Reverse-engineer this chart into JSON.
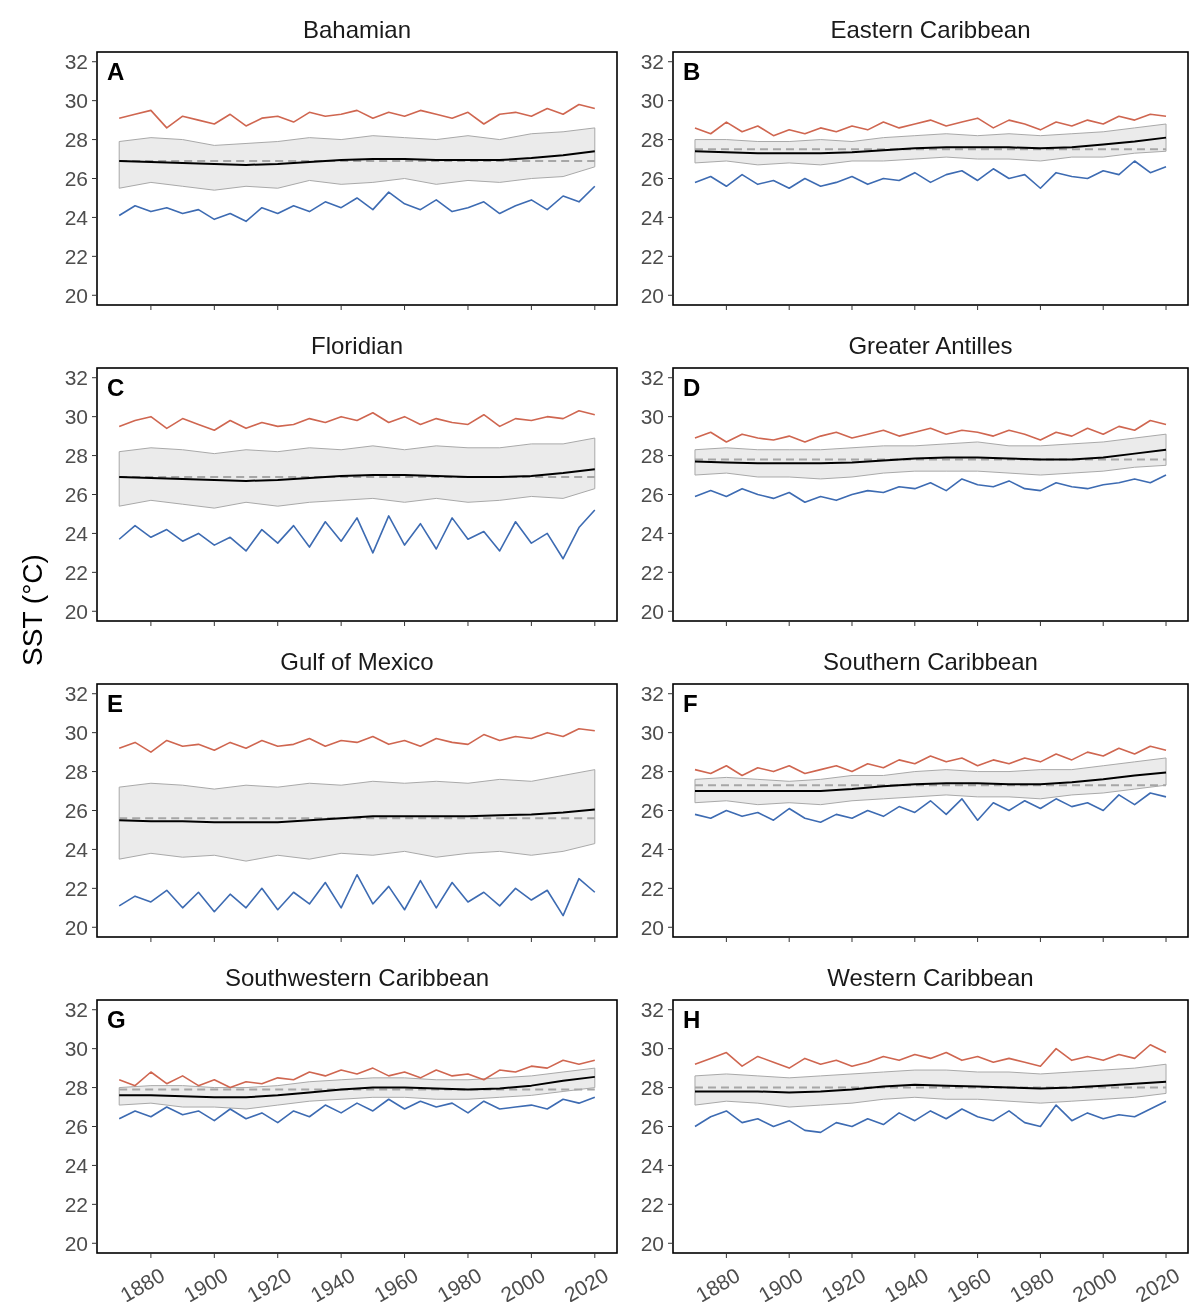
{
  "chart_data": [
    {
      "type": "line",
      "title": "Bahamian",
      "annotations": [
        "A"
      ],
      "xlim": [
        1863,
        2027
      ],
      "xticks": [
        1880,
        1900,
        1920,
        1940,
        1960,
        1980,
        2000,
        2020
      ],
      "ylim": [
        19.5,
        32.5
      ],
      "yticks": [
        20,
        22,
        24,
        26,
        28,
        30,
        32
      ],
      "tick_labels": "y",
      "x": [
        1870,
        1875,
        1880,
        1885,
        1890,
        1895,
        1900,
        1905,
        1910,
        1915,
        1920,
        1925,
        1930,
        1935,
        1940,
        1945,
        1950,
        1955,
        1960,
        1965,
        1970,
        1975,
        1980,
        1985,
        1990,
        1995,
        2000,
        2005,
        2010,
        2015,
        2020
      ],
      "ref_lines": [
        {
          "axis": "y",
          "value": 26.9,
          "color": "#a6a6a6",
          "line_style": "dashed"
        }
      ],
      "series": [
        {
          "color": "#000000",
          "x": [
            1870,
            1880,
            1890,
            1900,
            1910,
            1920,
            1930,
            1940,
            1950,
            1960,
            1970,
            1980,
            1990,
            2000,
            2010,
            2020
          ],
          "values": [
            26.9,
            26.85,
            26.8,
            26.75,
            26.7,
            26.75,
            26.85,
            26.95,
            27.0,
            27.0,
            26.95,
            26.95,
            26.95,
            27.05,
            27.2,
            27.4
          ],
          "lower": [
            25.5,
            25.8,
            25.6,
            25.4,
            25.6,
            25.5,
            25.9,
            25.7,
            25.8,
            26.0,
            25.7,
            25.9,
            25.8,
            26.0,
            26.1,
            26.6
          ],
          "upper": [
            27.9,
            28.1,
            28.0,
            27.7,
            27.8,
            27.9,
            28.1,
            28.0,
            28.2,
            28.1,
            28.0,
            28.2,
            28.0,
            28.3,
            28.4,
            28.6
          ]
        },
        {
          "color": "#cf6650",
          "values": [
            29.1,
            29.3,
            29.5,
            28.6,
            29.2,
            29.0,
            28.8,
            29.3,
            28.7,
            29.1,
            29.2,
            28.9,
            29.4,
            29.2,
            29.3,
            29.5,
            29.1,
            29.4,
            29.2,
            29.5,
            29.3,
            29.1,
            29.4,
            28.8,
            29.3,
            29.4,
            29.2,
            29.6,
            29.3,
            29.8,
            29.6
          ]
        },
        {
          "color": "#3d6bb2",
          "values": [
            24.1,
            24.6,
            24.3,
            24.5,
            24.2,
            24.4,
            23.9,
            24.2,
            23.8,
            24.5,
            24.2,
            24.6,
            24.3,
            24.8,
            24.5,
            25.0,
            24.4,
            25.3,
            24.7,
            24.4,
            24.9,
            24.3,
            24.5,
            24.8,
            24.2,
            24.6,
            24.9,
            24.4,
            25.1,
            24.8,
            25.6
          ]
        }
      ]
    },
    {
      "type": "line",
      "title": "Eastern Caribbean",
      "annotations": [
        "B"
      ],
      "xlim": [
        1863,
        2027
      ],
      "xticks": [
        1880,
        1900,
        1920,
        1940,
        1960,
        1980,
        2000,
        2020
      ],
      "ylim": [
        19.5,
        32.5
      ],
      "yticks": [
        20,
        22,
        24,
        26,
        28,
        30,
        32
      ],
      "tick_labels": "y",
      "x": [
        1870,
        1875,
        1880,
        1885,
        1890,
        1895,
        1900,
        1905,
        1910,
        1915,
        1920,
        1925,
        1930,
        1935,
        1940,
        1945,
        1950,
        1955,
        1960,
        1965,
        1970,
        1975,
        1980,
        1985,
        1990,
        1995,
        2000,
        2005,
        2010,
        2015,
        2020
      ],
      "ref_lines": [
        {
          "axis": "y",
          "value": 27.5,
          "color": "#a6a6a6",
          "line_style": "dashed"
        }
      ],
      "series": [
        {
          "color": "#000000",
          "x": [
            1870,
            1880,
            1890,
            1900,
            1910,
            1920,
            1930,
            1940,
            1950,
            1960,
            1970,
            1980,
            1990,
            2000,
            2010,
            2020
          ],
          "values": [
            27.4,
            27.35,
            27.3,
            27.3,
            27.3,
            27.35,
            27.45,
            27.55,
            27.6,
            27.6,
            27.6,
            27.55,
            27.6,
            27.75,
            27.9,
            28.1
          ],
          "lower": [
            26.8,
            26.9,
            26.7,
            26.8,
            26.7,
            26.9,
            26.9,
            27.0,
            27.1,
            27.0,
            27.0,
            26.9,
            27.1,
            27.1,
            27.3,
            27.4
          ],
          "upper": [
            28.0,
            28.0,
            27.9,
            27.9,
            28.0,
            27.9,
            28.1,
            28.2,
            28.3,
            28.2,
            28.3,
            28.2,
            28.3,
            28.4,
            28.6,
            28.8
          ]
        },
        {
          "color": "#cf6650",
          "values": [
            28.6,
            28.3,
            28.9,
            28.4,
            28.7,
            28.2,
            28.5,
            28.3,
            28.6,
            28.4,
            28.7,
            28.5,
            28.9,
            28.6,
            28.8,
            29.0,
            28.7,
            28.9,
            29.1,
            28.6,
            29.0,
            28.8,
            28.5,
            28.9,
            28.7,
            29.0,
            28.8,
            29.2,
            29.0,
            29.3,
            29.2
          ]
        },
        {
          "color": "#3d6bb2",
          "values": [
            25.8,
            26.1,
            25.6,
            26.2,
            25.7,
            25.9,
            25.5,
            26.0,
            25.6,
            25.8,
            26.1,
            25.7,
            26.0,
            25.9,
            26.3,
            25.8,
            26.2,
            26.4,
            25.9,
            26.5,
            26.0,
            26.2,
            25.5,
            26.3,
            26.1,
            26.0,
            26.4,
            26.2,
            26.9,
            26.3,
            26.6
          ]
        }
      ]
    },
    {
      "type": "line",
      "title": "Floridian",
      "ylabel": "SST (°C)",
      "annotations": [
        "C"
      ],
      "xlim": [
        1863,
        2027
      ],
      "xticks": [
        1880,
        1900,
        1920,
        1940,
        1960,
        1980,
        2000,
        2020
      ],
      "ylim": [
        19.5,
        32.5
      ],
      "yticks": [
        20,
        22,
        24,
        26,
        28,
        30,
        32
      ],
      "tick_labels": "y",
      "x": [
        1870,
        1875,
        1880,
        1885,
        1890,
        1895,
        1900,
        1905,
        1910,
        1915,
        1920,
        1925,
        1930,
        1935,
        1940,
        1945,
        1950,
        1955,
        1960,
        1965,
        1970,
        1975,
        1980,
        1985,
        1990,
        1995,
        2000,
        2005,
        2010,
        2015,
        2020
      ],
      "ref_lines": [
        {
          "axis": "y",
          "value": 26.9,
          "color": "#a6a6a6",
          "line_style": "dashed"
        }
      ],
      "series": [
        {
          "color": "#000000",
          "x": [
            1870,
            1880,
            1890,
            1900,
            1910,
            1920,
            1930,
            1940,
            1950,
            1960,
            1970,
            1980,
            1990,
            2000,
            2010,
            2020
          ],
          "values": [
            26.9,
            26.85,
            26.8,
            26.75,
            26.7,
            26.75,
            26.85,
            26.95,
            27.0,
            27.0,
            26.95,
            26.9,
            26.9,
            26.95,
            27.1,
            27.3
          ],
          "lower": [
            25.4,
            25.7,
            25.5,
            25.3,
            25.6,
            25.4,
            25.6,
            25.7,
            25.8,
            25.6,
            25.8,
            25.6,
            25.7,
            25.9,
            25.8,
            26.3
          ],
          "upper": [
            28.2,
            28.4,
            28.3,
            28.1,
            28.3,
            28.2,
            28.4,
            28.3,
            28.5,
            28.3,
            28.5,
            28.4,
            28.4,
            28.6,
            28.6,
            28.9
          ]
        },
        {
          "color": "#cf6650",
          "values": [
            29.5,
            29.8,
            30.0,
            29.4,
            29.9,
            29.6,
            29.3,
            29.8,
            29.4,
            29.7,
            29.5,
            29.6,
            29.9,
            29.7,
            30.0,
            29.8,
            30.2,
            29.7,
            30.0,
            29.6,
            29.9,
            29.7,
            29.6,
            30.1,
            29.5,
            29.9,
            29.8,
            30.0,
            29.9,
            30.3,
            30.1
          ]
        },
        {
          "color": "#3d6bb2",
          "values": [
            23.7,
            24.4,
            23.8,
            24.2,
            23.6,
            24.0,
            23.4,
            23.8,
            23.1,
            24.2,
            23.5,
            24.4,
            23.3,
            24.6,
            23.6,
            24.8,
            23.0,
            24.9,
            23.4,
            24.5,
            23.2,
            24.8,
            23.7,
            24.1,
            23.1,
            24.6,
            23.5,
            24.0,
            22.7,
            24.3,
            25.2
          ]
        }
      ]
    },
    {
      "type": "line",
      "title": "Greater Antilles",
      "annotations": [
        "D"
      ],
      "xlim": [
        1863,
        2027
      ],
      "xticks": [
        1880,
        1900,
        1920,
        1940,
        1960,
        1980,
        2000,
        2020
      ],
      "ylim": [
        19.5,
        32.5
      ],
      "yticks": [
        20,
        22,
        24,
        26,
        28,
        30,
        32
      ],
      "tick_labels": "y",
      "x": [
        1870,
        1875,
        1880,
        1885,
        1890,
        1895,
        1900,
        1905,
        1910,
        1915,
        1920,
        1925,
        1930,
        1935,
        1940,
        1945,
        1950,
        1955,
        1960,
        1965,
        1970,
        1975,
        1980,
        1985,
        1990,
        1995,
        2000,
        2005,
        2010,
        2015,
        2020
      ],
      "ref_lines": [
        {
          "axis": "y",
          "value": 27.8,
          "color": "#a6a6a6",
          "line_style": "dashed"
        }
      ],
      "series": [
        {
          "color": "#000000",
          "x": [
            1870,
            1880,
            1890,
            1900,
            1910,
            1920,
            1930,
            1940,
            1950,
            1960,
            1970,
            1980,
            1990,
            2000,
            2010,
            2020
          ],
          "values": [
            27.7,
            27.65,
            27.6,
            27.6,
            27.6,
            27.65,
            27.75,
            27.85,
            27.9,
            27.9,
            27.85,
            27.8,
            27.8,
            27.9,
            28.1,
            28.3
          ],
          "lower": [
            27.0,
            27.1,
            26.9,
            26.9,
            26.8,
            26.9,
            27.1,
            27.2,
            27.2,
            27.2,
            27.1,
            27.0,
            27.1,
            27.2,
            27.4,
            27.5
          ],
          "upper": [
            28.3,
            28.4,
            28.3,
            28.3,
            28.3,
            28.4,
            28.5,
            28.5,
            28.6,
            28.7,
            28.5,
            28.5,
            28.6,
            28.7,
            28.9,
            29.1
          ]
        },
        {
          "color": "#cf6650",
          "values": [
            28.9,
            29.2,
            28.7,
            29.1,
            28.9,
            28.8,
            29.0,
            28.7,
            29.0,
            29.2,
            28.9,
            29.1,
            29.3,
            29.0,
            29.2,
            29.4,
            29.1,
            29.3,
            29.2,
            29.0,
            29.3,
            29.1,
            28.8,
            29.2,
            29.0,
            29.4,
            29.1,
            29.5,
            29.3,
            29.8,
            29.6
          ]
        },
        {
          "color": "#3d6bb2",
          "values": [
            25.9,
            26.2,
            25.9,
            26.3,
            26.0,
            25.8,
            26.1,
            25.6,
            25.9,
            25.7,
            26.0,
            26.2,
            26.1,
            26.4,
            26.3,
            26.6,
            26.2,
            26.8,
            26.5,
            26.4,
            26.7,
            26.3,
            26.2,
            26.6,
            26.4,
            26.3,
            26.5,
            26.6,
            26.8,
            26.6,
            27.0
          ]
        }
      ]
    },
    {
      "type": "line",
      "title": "Gulf of Mexico",
      "annotations": [
        "E"
      ],
      "xlim": [
        1863,
        2027
      ],
      "xticks": [
        1880,
        1900,
        1920,
        1940,
        1960,
        1980,
        2000,
        2020
      ],
      "ylim": [
        19.5,
        32.5
      ],
      "yticks": [
        20,
        22,
        24,
        26,
        28,
        30,
        32
      ],
      "tick_labels": "y",
      "x": [
        1870,
        1875,
        1880,
        1885,
        1890,
        1895,
        1900,
        1905,
        1910,
        1915,
        1920,
        1925,
        1930,
        1935,
        1940,
        1945,
        1950,
        1955,
        1960,
        1965,
        1970,
        1975,
        1980,
        1985,
        1990,
        1995,
        2000,
        2005,
        2010,
        2015,
        2020
      ],
      "ref_lines": [
        {
          "axis": "y",
          "value": 25.6,
          "color": "#a6a6a6",
          "line_style": "dashed"
        }
      ],
      "series": [
        {
          "color": "#000000",
          "x": [
            1870,
            1880,
            1890,
            1900,
            1910,
            1920,
            1930,
            1940,
            1950,
            1960,
            1970,
            1980,
            1990,
            2000,
            2010,
            2020
          ],
          "values": [
            25.5,
            25.45,
            25.45,
            25.4,
            25.4,
            25.4,
            25.5,
            25.6,
            25.7,
            25.7,
            25.7,
            25.7,
            25.75,
            25.8,
            25.9,
            26.05
          ],
          "lower": [
            23.5,
            23.8,
            23.6,
            23.7,
            23.4,
            23.7,
            23.5,
            23.8,
            23.7,
            23.9,
            23.6,
            23.8,
            23.9,
            23.7,
            23.9,
            24.3
          ],
          "upper": [
            27.2,
            27.4,
            27.3,
            27.1,
            27.3,
            27.2,
            27.4,
            27.3,
            27.5,
            27.4,
            27.5,
            27.4,
            27.6,
            27.5,
            27.8,
            28.1
          ]
        },
        {
          "color": "#cf6650",
          "values": [
            29.2,
            29.5,
            29.0,
            29.6,
            29.3,
            29.4,
            29.1,
            29.5,
            29.2,
            29.6,
            29.3,
            29.4,
            29.7,
            29.3,
            29.6,
            29.5,
            29.8,
            29.4,
            29.6,
            29.3,
            29.7,
            29.5,
            29.4,
            29.9,
            29.6,
            29.8,
            29.7,
            30.0,
            29.8,
            30.2,
            30.1
          ]
        },
        {
          "color": "#3d6bb2",
          "values": [
            21.1,
            21.6,
            21.3,
            21.9,
            21.0,
            21.8,
            20.8,
            21.7,
            21.0,
            22.0,
            20.9,
            21.8,
            21.2,
            22.3,
            21.0,
            22.7,
            21.2,
            22.1,
            20.9,
            22.4,
            21.0,
            22.3,
            21.3,
            21.8,
            21.1,
            22.0,
            21.4,
            21.9,
            20.6,
            22.5,
            21.8
          ]
        }
      ]
    },
    {
      "type": "line",
      "title": "Southern Caribbean",
      "annotations": [
        "F"
      ],
      "xlim": [
        1863,
        2027
      ],
      "xticks": [
        1880,
        1900,
        1920,
        1940,
        1960,
        1980,
        2000,
        2020
      ],
      "ylim": [
        19.5,
        32.5
      ],
      "yticks": [
        20,
        22,
        24,
        26,
        28,
        30,
        32
      ],
      "tick_labels": "y",
      "x": [
        1870,
        1875,
        1880,
        1885,
        1890,
        1895,
        1900,
        1905,
        1910,
        1915,
        1920,
        1925,
        1930,
        1935,
        1940,
        1945,
        1950,
        1955,
        1960,
        1965,
        1970,
        1975,
        1980,
        1985,
        1990,
        1995,
        2000,
        2005,
        2010,
        2015,
        2020
      ],
      "ref_lines": [
        {
          "axis": "y",
          "value": 27.3,
          "color": "#a6a6a6",
          "line_style": "dashed"
        }
      ],
      "series": [
        {
          "color": "#000000",
          "x": [
            1870,
            1880,
            1890,
            1900,
            1910,
            1920,
            1930,
            1940,
            1950,
            1960,
            1970,
            1980,
            1990,
            2000,
            2010,
            2020
          ],
          "values": [
            27.0,
            27.0,
            27.0,
            27.0,
            27.0,
            27.1,
            27.25,
            27.35,
            27.4,
            27.4,
            27.35,
            27.35,
            27.45,
            27.6,
            27.8,
            27.95
          ],
          "lower": [
            26.4,
            26.5,
            26.3,
            26.4,
            26.3,
            26.5,
            26.6,
            26.7,
            26.8,
            26.7,
            26.7,
            26.6,
            26.8,
            26.9,
            27.1,
            27.3
          ],
          "upper": [
            27.6,
            27.7,
            27.6,
            27.5,
            27.6,
            27.8,
            27.8,
            28.0,
            28.1,
            28.0,
            28.0,
            28.1,
            28.1,
            28.3,
            28.5,
            28.7
          ]
        },
        {
          "color": "#cf6650",
          "values": [
            28.1,
            27.9,
            28.3,
            27.8,
            28.2,
            28.0,
            28.3,
            27.9,
            28.1,
            28.3,
            28.0,
            28.4,
            28.2,
            28.6,
            28.4,
            28.8,
            28.5,
            28.7,
            28.3,
            28.6,
            28.4,
            28.7,
            28.5,
            28.9,
            28.6,
            29.0,
            28.8,
            29.2,
            28.9,
            29.3,
            29.1
          ]
        },
        {
          "color": "#3d6bb2",
          "values": [
            25.8,
            25.6,
            26.0,
            25.7,
            25.9,
            25.5,
            26.1,
            25.6,
            25.4,
            25.8,
            25.6,
            26.0,
            25.7,
            26.2,
            25.9,
            26.5,
            25.8,
            26.6,
            25.5,
            26.4,
            26.0,
            26.5,
            26.1,
            26.6,
            26.2,
            26.4,
            26.0,
            26.8,
            26.3,
            26.9,
            26.7
          ]
        }
      ]
    },
    {
      "type": "line",
      "title": "Southwestern Caribbean",
      "annotations": [
        "G"
      ],
      "xlim": [
        1863,
        2027
      ],
      "xticks": [
        1880,
        1900,
        1920,
        1940,
        1960,
        1980,
        2000,
        2020
      ],
      "ylim": [
        19.5,
        32.5
      ],
      "yticks": [
        20,
        22,
        24,
        26,
        28,
        30,
        32
      ],
      "x": [
        1870,
        1875,
        1880,
        1885,
        1890,
        1895,
        1900,
        1905,
        1910,
        1915,
        1920,
        1925,
        1930,
        1935,
        1940,
        1945,
        1950,
        1955,
        1960,
        1965,
        1970,
        1975,
        1980,
        1985,
        1990,
        1995,
        2000,
        2005,
        2010,
        2015,
        2020
      ],
      "ref_lines": [
        {
          "axis": "y",
          "value": 27.9,
          "color": "#a6a6a6",
          "line_style": "dashed"
        }
      ],
      "series": [
        {
          "color": "#000000",
          "x": [
            1870,
            1880,
            1890,
            1900,
            1910,
            1920,
            1930,
            1940,
            1950,
            1960,
            1970,
            1980,
            1990,
            2000,
            2010,
            2020
          ],
          "values": [
            27.6,
            27.6,
            27.55,
            27.5,
            27.5,
            27.6,
            27.75,
            27.9,
            28.0,
            28.0,
            27.95,
            27.9,
            27.95,
            28.1,
            28.35,
            28.55
          ],
          "lower": [
            27.1,
            27.2,
            27.0,
            27.0,
            26.9,
            27.1,
            27.3,
            27.4,
            27.5,
            27.5,
            27.4,
            27.4,
            27.5,
            27.6,
            27.8,
            28.0
          ],
          "upper": [
            28.0,
            28.1,
            28.1,
            28.0,
            28.0,
            28.1,
            28.3,
            28.4,
            28.5,
            28.5,
            28.4,
            28.4,
            28.5,
            28.6,
            28.8,
            29.0
          ]
        },
        {
          "color": "#cf6650",
          "values": [
            28.4,
            28.1,
            28.8,
            28.2,
            28.6,
            28.1,
            28.4,
            28.0,
            28.3,
            28.2,
            28.5,
            28.4,
            28.8,
            28.6,
            28.9,
            28.7,
            29.0,
            28.6,
            28.8,
            28.5,
            28.9,
            28.6,
            28.7,
            28.4,
            28.9,
            28.8,
            29.1,
            29.0,
            29.4,
            29.2,
            29.4
          ]
        },
        {
          "color": "#3d6bb2",
          "values": [
            26.4,
            26.8,
            26.5,
            27.0,
            26.6,
            26.8,
            26.3,
            26.9,
            26.4,
            26.7,
            26.2,
            26.8,
            26.5,
            27.1,
            26.7,
            27.2,
            26.8,
            27.4,
            26.9,
            27.3,
            27.0,
            27.2,
            26.7,
            27.3,
            26.9,
            27.0,
            27.1,
            26.9,
            27.4,
            27.2,
            27.5
          ]
        }
      ]
    },
    {
      "type": "line",
      "title": "Western Caribbean",
      "annotations": [
        "H"
      ],
      "xlim": [
        1863,
        2027
      ],
      "xticks": [
        1880,
        1900,
        1920,
        1940,
        1960,
        1980,
        2000,
        2020
      ],
      "ylim": [
        19.5,
        32.5
      ],
      "yticks": [
        20,
        22,
        24,
        26,
        28,
        30,
        32
      ],
      "x": [
        1870,
        1875,
        1880,
        1885,
        1890,
        1895,
        1900,
        1905,
        1910,
        1915,
        1920,
        1925,
        1930,
        1935,
        1940,
        1945,
        1950,
        1955,
        1960,
        1965,
        1970,
        1975,
        1980,
        1985,
        1990,
        1995,
        2000,
        2005,
        2010,
        2015,
        2020
      ],
      "ref_lines": [
        {
          "axis": "y",
          "value": 28.0,
          "color": "#a6a6a6",
          "line_style": "dashed"
        }
      ],
      "series": [
        {
          "color": "#000000",
          "x": [
            1870,
            1880,
            1890,
            1900,
            1910,
            1920,
            1930,
            1940,
            1950,
            1960,
            1970,
            1980,
            1990,
            2000,
            2010,
            2020
          ],
          "values": [
            27.8,
            27.8,
            27.8,
            27.75,
            27.8,
            27.9,
            28.05,
            28.15,
            28.1,
            28.05,
            28.0,
            27.95,
            28.0,
            28.1,
            28.2,
            28.3
          ],
          "lower": [
            27.1,
            27.3,
            27.2,
            27.0,
            27.1,
            27.2,
            27.4,
            27.5,
            27.4,
            27.4,
            27.3,
            27.2,
            27.3,
            27.4,
            27.5,
            27.7
          ],
          "upper": [
            28.6,
            28.7,
            28.6,
            28.5,
            28.6,
            28.7,
            28.8,
            28.9,
            28.9,
            28.8,
            28.8,
            28.7,
            28.8,
            28.9,
            29.0,
            29.2
          ]
        },
        {
          "color": "#cf6650",
          "values": [
            29.2,
            29.5,
            29.8,
            29.1,
            29.6,
            29.3,
            29.0,
            29.5,
            29.2,
            29.4,
            29.1,
            29.3,
            29.6,
            29.4,
            29.7,
            29.5,
            29.8,
            29.4,
            29.6,
            29.3,
            29.5,
            29.3,
            29.1,
            30.0,
            29.4,
            29.6,
            29.4,
            29.7,
            29.5,
            30.2,
            29.8
          ]
        },
        {
          "color": "#3d6bb2",
          "values": [
            26.0,
            26.5,
            26.8,
            26.2,
            26.4,
            26.0,
            26.3,
            25.8,
            25.7,
            26.2,
            26.0,
            26.4,
            26.1,
            26.7,
            26.3,
            26.8,
            26.4,
            26.9,
            26.5,
            26.3,
            26.8,
            26.2,
            26.0,
            27.1,
            26.3,
            26.7,
            26.4,
            26.6,
            26.5,
            26.9,
            27.3
          ]
        }
      ]
    }
  ]
}
